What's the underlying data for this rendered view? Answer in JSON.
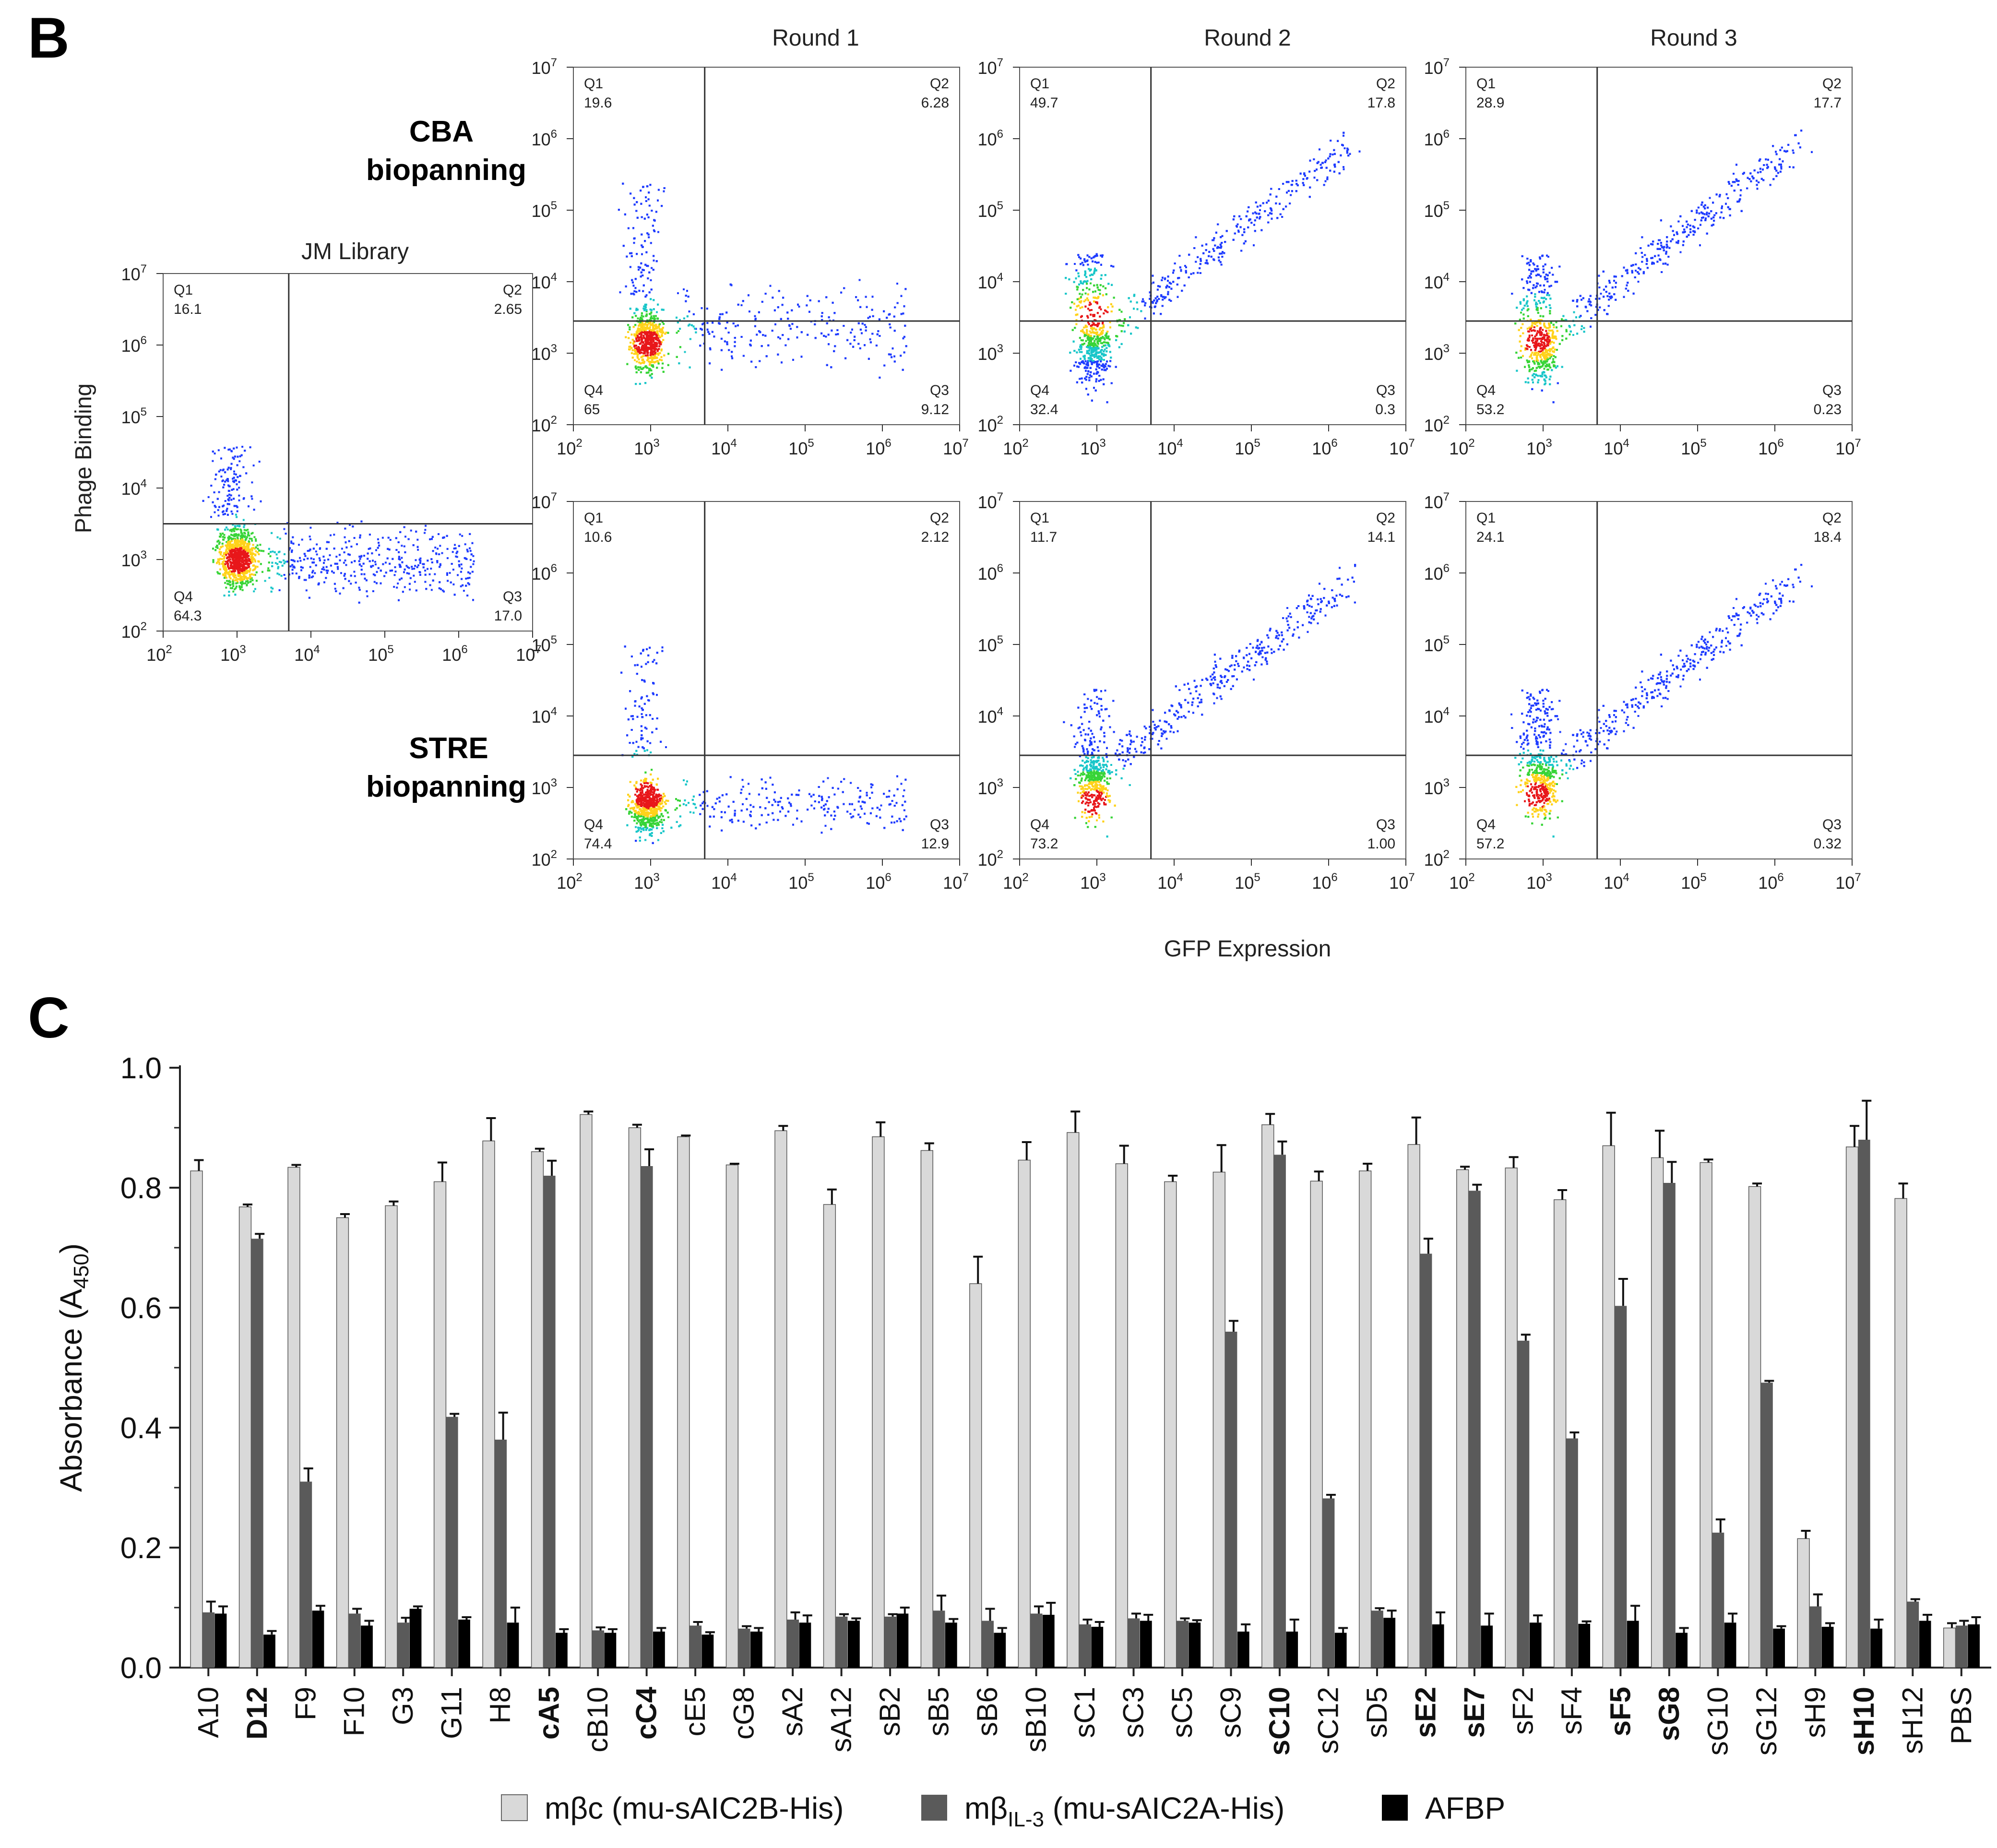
{
  "panel_labels": {
    "b": "B",
    "c": "C"
  },
  "flow": {
    "library_title": "JM Library",
    "round_titles": [
      "Round 1",
      "Round 2",
      "Round 3"
    ],
    "row_labels": [
      {
        "line1": "CBA",
        "line2": "biopanning"
      },
      {
        "line1": "STRE",
        "line2": "biopanning"
      }
    ],
    "y_axis_label": "Phage Binding",
    "x_axis_label": "GFP Expression",
    "tick_base": "10",
    "tick_exponents": [
      "2",
      "3",
      "4",
      "5",
      "6",
      "7"
    ],
    "quadrant_names": [
      "Q1",
      "Q2",
      "Q3",
      "Q4"
    ],
    "library_quadrants": {
      "Q1": "16.1",
      "Q2": "2.65",
      "Q3": "17.0",
      "Q4": "64.3"
    },
    "rounds": [
      {
        "Q1": "19.6",
        "Q2": "6.28",
        "Q3": "9.12",
        "Q4": "65"
      },
      {
        "Q1": "49.7",
        "Q2": "17.8",
        "Q3": "0.3",
        "Q4": "32.4"
      },
      {
        "Q1": "28.9",
        "Q2": "17.7",
        "Q3": "0.23",
        "Q4": "53.2"
      },
      {
        "Q1": "10.6",
        "Q2": "2.12",
        "Q3": "12.9",
        "Q4": "74.4"
      },
      {
        "Q1": "11.7",
        "Q2": "14.1",
        "Q3": "1.00",
        "Q4": "73.2"
      },
      {
        "Q1": "24.1",
        "Q2": "18.4",
        "Q3": "0.32",
        "Q4": "57.2"
      }
    ]
  },
  "chart_data": {
    "type": "bar",
    "ylabel": "Absorbance (A450)",
    "ylabel_main": "Absorbance (A",
    "ylabel_sub": "450",
    "ylabel_close": ")",
    "ylim": [
      0.0,
      1.0
    ],
    "yticks": [
      "0.0",
      "0.2",
      "0.4",
      "0.6",
      "0.8",
      "1.0"
    ],
    "categories": [
      "A10",
      "D12",
      "F9",
      "F10",
      "G3",
      "G11",
      "H8",
      "cA5",
      "cB10",
      "cC4",
      "cE5",
      "cG8",
      "sA2",
      "sA12",
      "sB2",
      "sB5",
      "sB6",
      "sB10",
      "sC1",
      "sC3",
      "sC5",
      "sC9",
      "sC10",
      "sC12",
      "sD5",
      "sE2",
      "sE7",
      "sF2",
      "sF4",
      "sF5",
      "sG8",
      "sG10",
      "sG12",
      "sH9",
      "sH10",
      "sH12",
      "PBS"
    ],
    "bold_categories": [
      "D12",
      "cA5",
      "cC4",
      "sC10",
      "sE2",
      "sE7",
      "sF5",
      "sG8",
      "sH10"
    ],
    "series": [
      {
        "name": "mβc (mu-sAIC2B-His)",
        "legend_main": "mβc (mu-sAIC2B-His)",
        "color": "#d9d9d9",
        "values": [
          0.828,
          0.768,
          0.834,
          0.75,
          0.77,
          0.81,
          0.878,
          0.86,
          0.922,
          0.9,
          0.885,
          0.838,
          0.895,
          0.772,
          0.885,
          0.862,
          0.64,
          0.846,
          0.892,
          0.84,
          0.81,
          0.826,
          0.905,
          0.811,
          0.828,
          0.872,
          0.83,
          0.833,
          0.78,
          0.87,
          0.85,
          0.842,
          0.802,
          0.215,
          0.868,
          0.782,
          0.066
        ],
        "errors": [
          0.018,
          0.004,
          0.004,
          0.006,
          0.007,
          0.032,
          0.038,
          0.005,
          0.005,
          0.005,
          0.002,
          0.002,
          0.008,
          0.025,
          0.024,
          0.012,
          0.045,
          0.03,
          0.035,
          0.03,
          0.01,
          0.045,
          0.018,
          0.016,
          0.012,
          0.045,
          0.005,
          0.018,
          0.016,
          0.055,
          0.045,
          0.005,
          0.005,
          0.013,
          0.035,
          0.025,
          0.008
        ]
      },
      {
        "name": "mβIL-3 (mu-sAIC2A-His)",
        "legend_main": "mβ",
        "legend_sub": "IL-3",
        "legend_rest": " (mu-sAIC2A-His)",
        "color": "#5a5a5a",
        "values": [
          0.092,
          0.715,
          0.31,
          0.09,
          0.075,
          0.418,
          0.38,
          0.82,
          0.062,
          0.836,
          0.07,
          0.065,
          0.08,
          0.085,
          0.085,
          0.095,
          0.078,
          0.09,
          0.072,
          0.082,
          0.078,
          0.56,
          0.855,
          0.282,
          0.095,
          0.69,
          0.795,
          0.545,
          0.382,
          0.603,
          0.808,
          0.225,
          0.475,
          0.102,
          0.88,
          0.11,
          0.07
        ],
        "errors": [
          0.018,
          0.008,
          0.022,
          0.008,
          0.008,
          0.005,
          0.045,
          0.025,
          0.005,
          0.028,
          0.006,
          0.004,
          0.012,
          0.004,
          0.004,
          0.025,
          0.02,
          0.012,
          0.008,
          0.008,
          0.004,
          0.018,
          0.022,
          0.006,
          0.004,
          0.025,
          0.01,
          0.01,
          0.01,
          0.045,
          0.035,
          0.022,
          0.003,
          0.02,
          0.065,
          0.004,
          0.008
        ]
      },
      {
        "name": "AFBP",
        "legend_main": "AFBP",
        "color": "#000000",
        "values": [
          0.09,
          0.055,
          0.095,
          0.07,
          0.098,
          0.08,
          0.075,
          0.058,
          0.058,
          0.06,
          0.055,
          0.06,
          0.075,
          0.078,
          0.09,
          0.075,
          0.058,
          0.088,
          0.068,
          0.078,
          0.075,
          0.06,
          0.06,
          0.058,
          0.083,
          0.072,
          0.07,
          0.075,
          0.073,
          0.078,
          0.058,
          0.075,
          0.065,
          0.068,
          0.065,
          0.078,
          0.072
        ],
        "errors": [
          0.012,
          0.006,
          0.008,
          0.008,
          0.004,
          0.004,
          0.025,
          0.006,
          0.006,
          0.006,
          0.004,
          0.006,
          0.012,
          0.004,
          0.01,
          0.006,
          0.008,
          0.02,
          0.008,
          0.01,
          0.004,
          0.012,
          0.02,
          0.008,
          0.012,
          0.02,
          0.02,
          0.012,
          0.004,
          0.025,
          0.008,
          0.015,
          0.004,
          0.006,
          0.015,
          0.01,
          0.012
        ]
      }
    ]
  }
}
